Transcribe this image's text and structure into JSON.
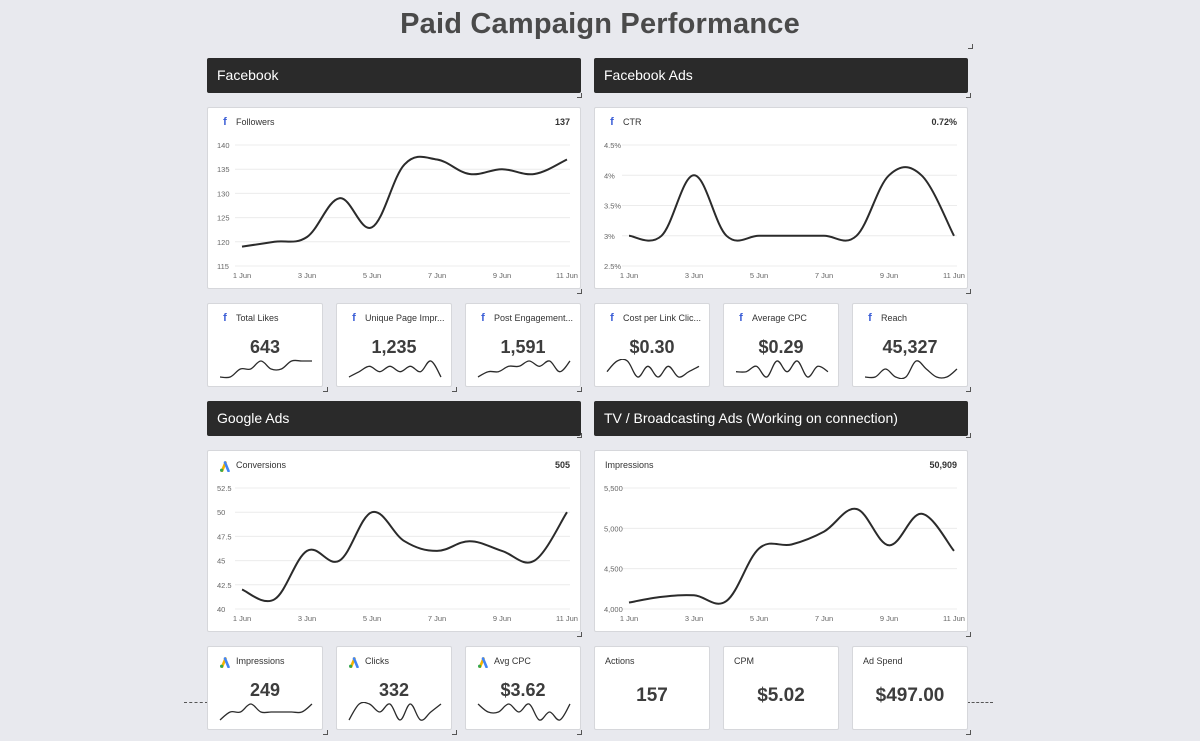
{
  "page": {
    "title": "Paid Campaign Performance"
  },
  "sections": {
    "facebook": "Facebook",
    "facebook_ads": "Facebook Ads",
    "google_ads": "Google Ads",
    "tv": "TV / Broadcasting Ads (Working on connection)"
  },
  "charts": {
    "followers": {
      "label": "Followers",
      "value": "137",
      "icon": "facebook-icon",
      "yticks": [
        "140",
        "135",
        "130",
        "125",
        "120",
        "115"
      ],
      "xticks": [
        "1 Jun",
        "3 Jun",
        "5 Jun",
        "7 Jun",
        "9 Jun",
        "11 Jun"
      ]
    },
    "ctr": {
      "label": "CTR",
      "value": "0.72%",
      "icon": "facebook-icon",
      "yticks": [
        "4.5%",
        "4%",
        "3.5%",
        "3%",
        "2.5%"
      ],
      "xticks": [
        "1 Jun",
        "3 Jun",
        "5 Jun",
        "7 Jun",
        "9 Jun",
        "11 Jun"
      ]
    },
    "conversions": {
      "label": "Conversions",
      "value": "505",
      "icon": "google-ads-icon",
      "yticks": [
        "52.5",
        "50",
        "47.5",
        "45",
        "42.5",
        "40"
      ],
      "xticks": [
        "1 Jun",
        "3 Jun",
        "5 Jun",
        "7 Jun",
        "9 Jun",
        "11 Jun"
      ]
    },
    "impressions_tv": {
      "label": "Impressions",
      "value": "50,909",
      "yticks": [
        "5,500",
        "5,000",
        "4,500",
        "4,000"
      ],
      "xticks": [
        "1 Jun",
        "3 Jun",
        "5 Jun",
        "7 Jun",
        "9 Jun",
        "11 Jun"
      ]
    }
  },
  "chart_data": [
    {
      "type": "line",
      "title": "Followers",
      "x": [
        "1 Jun",
        "2 Jun",
        "3 Jun",
        "4 Jun",
        "5 Jun",
        "6 Jun",
        "7 Jun",
        "8 Jun",
        "9 Jun",
        "10 Jun",
        "11 Jun"
      ],
      "values": [
        119,
        120,
        121,
        129,
        123,
        136,
        137,
        134,
        135,
        134,
        137
      ],
      "ylim": [
        115,
        140
      ]
    },
    {
      "type": "line",
      "title": "CTR",
      "x": [
        "1 Jun",
        "2 Jun",
        "3 Jun",
        "4 Jun",
        "5 Jun",
        "6 Jun",
        "7 Jun",
        "8 Jun",
        "9 Jun",
        "10 Jun",
        "11 Jun"
      ],
      "values": [
        3,
        3,
        4,
        3,
        3,
        3,
        3,
        3,
        4,
        4,
        3
      ],
      "ylim": [
        2.5,
        4.5
      ]
    },
    {
      "type": "line",
      "title": "Conversions",
      "x": [
        "1 Jun",
        "2 Jun",
        "3 Jun",
        "4 Jun",
        "5 Jun",
        "6 Jun",
        "7 Jun",
        "8 Jun",
        "9 Jun",
        "10 Jun",
        "11 Jun"
      ],
      "values": [
        42,
        41,
        46,
        45,
        50,
        47,
        46,
        47,
        46,
        45,
        50
      ],
      "ylim": [
        40,
        52.5
      ]
    },
    {
      "type": "line",
      "title": "Impressions",
      "x": [
        "1 Jun",
        "2 Jun",
        "3 Jun",
        "4 Jun",
        "5 Jun",
        "6 Jun",
        "7 Jun",
        "8 Jun",
        "9 Jun",
        "10 Jun",
        "11 Jun"
      ],
      "values": [
        4080,
        4150,
        4170,
        4100,
        4750,
        4800,
        4960,
        5240,
        4790,
        5180,
        4720
      ],
      "ylim": [
        4000,
        5500
      ]
    }
  ],
  "kpis": {
    "total_likes": {
      "label": "Total Likes",
      "value": "643",
      "icon": "facebook-icon",
      "spark": [
        2,
        2,
        3,
        3,
        4,
        3,
        3,
        4,
        4,
        4
      ]
    },
    "unique_page_impr": {
      "label": "Unique Page Impr...",
      "value": "1,235",
      "icon": "facebook-icon",
      "spark": [
        2,
        3,
        4,
        3,
        4,
        3,
        4,
        3,
        5,
        2
      ]
    },
    "post_engagement": {
      "label": "Post Engagement...",
      "value": "1,591",
      "icon": "facebook-icon",
      "spark": [
        2,
        3,
        3,
        4,
        4,
        5,
        4,
        5,
        3,
        5
      ]
    },
    "cost_per_link_click": {
      "label": "Cost per Link Clic...",
      "value": "$0.30",
      "icon": "facebook-icon",
      "spark": [
        3,
        5,
        5,
        2,
        4,
        2,
        4,
        2,
        3,
        4
      ]
    },
    "average_cpc": {
      "label": "Average CPC",
      "value": "$0.29",
      "icon": "facebook-icon",
      "spark": [
        3,
        3,
        4,
        2,
        5,
        3,
        5,
        2,
        4,
        3
      ]
    },
    "reach": {
      "label": "Reach",
      "value": "45,327",
      "icon": "facebook-icon",
      "spark": [
        3,
        3,
        4,
        3,
        3,
        5,
        4,
        3,
        3,
        4
      ]
    },
    "impressions": {
      "label": "Impressions",
      "value": "249",
      "icon": "google-ads-icon",
      "spark": [
        2,
        3,
        3,
        4,
        3,
        3,
        3,
        3,
        3,
        4
      ]
    },
    "clicks": {
      "label": "Clicks",
      "value": "332",
      "icon": "google-ads-icon",
      "spark": [
        2,
        4,
        4,
        3,
        4,
        2,
        4,
        2,
        3,
        4
      ]
    },
    "avg_cpc": {
      "label": "Avg CPC",
      "value": "$3.62",
      "icon": "google-ads-icon",
      "spark": [
        4,
        3,
        3,
        4,
        3,
        4,
        2,
        3,
        2,
        4
      ]
    },
    "actions": {
      "label": "Actions",
      "value": "157"
    },
    "cpm": {
      "label": "CPM",
      "value": "$5.02"
    },
    "ad_spend": {
      "label": "Ad Spend",
      "value": "$497.00"
    }
  },
  "colors": {
    "header_bg": "#2a2a2a",
    "page_bg": "#e8e9ee",
    "facebook_blue": "#3b5ed6",
    "line": "#2b2b2b"
  }
}
